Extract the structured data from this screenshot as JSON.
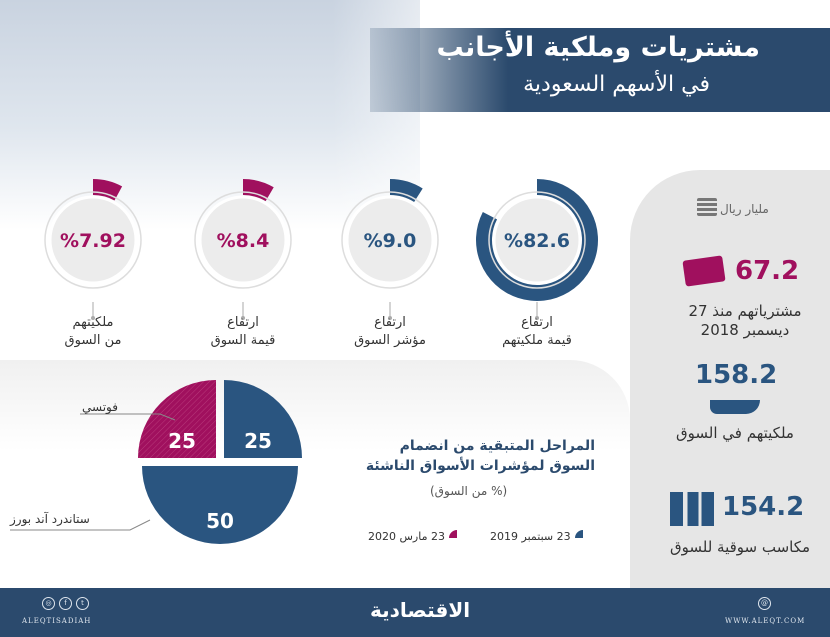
{
  "header": {
    "title_line1": "مشتريات وملكية الأجانب",
    "title_line2": "في الأسهم السعودية"
  },
  "colors": {
    "blue": "#2a5580",
    "magenta": "#a0105e",
    "footer": "#2b4a6d"
  },
  "gauges": [
    {
      "value_text": "%82.6",
      "percent": 82.6,
      "color": "blue",
      "label1": "ارتفاع",
      "label2": "قيمة ملكيتهم"
    },
    {
      "value_text": "%9.0",
      "percent": 9.0,
      "color": "blue",
      "label1": "ارتفاع",
      "label2": "مؤشر السوق"
    },
    {
      "value_text": "%8.4",
      "percent": 8.4,
      "color": "magenta",
      "label1": "ارتفاع",
      "label2": "قيمة السوق"
    },
    {
      "value_text": "%7.92",
      "percent": 7.92,
      "color": "magenta",
      "label1": "ملكيتهم",
      "label2": "من السوق"
    }
  ],
  "panel": {
    "unit": "مليار ريال",
    "unit_icon": "money-stack-icon",
    "items": [
      {
        "value": "67.2",
        "label1": "مشترياتهم منذ 27",
        "label2": "ديسمبر 2018",
        "icon": "cash-hand-icon"
      },
      {
        "value": "158.2",
        "label1": "ملكيتهم في السوق",
        "icon": "open-hand-icon"
      },
      {
        "value": "154.2",
        "label1": "مكاسب سوقية للسوق",
        "icon": "growth-chart-icon"
      }
    ]
  },
  "stages": {
    "title_line1": "المراحل المتبقية من انضمام",
    "title_line2": "السوق لمؤشرات الأسواق الناشئة",
    "subtitle": "(% من السوق)",
    "legend": [
      {
        "label": "23 سبتمبر 2019",
        "color": "blue"
      },
      {
        "label": "23 مارس 2020",
        "color": "magenta"
      }
    ],
    "pie_labels": {
      "ftse": "فوتسي",
      "sp": "ستاندرد آند بورز"
    }
  },
  "chart_data": {
    "type": "pie",
    "slices": [
      {
        "value": 25,
        "label": "25",
        "color": "#a0105e"
      },
      {
        "value": 25,
        "label": "25",
        "color": "#2a5580"
      },
      {
        "value": 50,
        "label": "50",
        "color": "#2a5580"
      }
    ]
  },
  "footer": {
    "logo": "الاقتصادية",
    "handle": "ALEQTISADIAH",
    "website": "WWW.ALEQT.COM"
  }
}
